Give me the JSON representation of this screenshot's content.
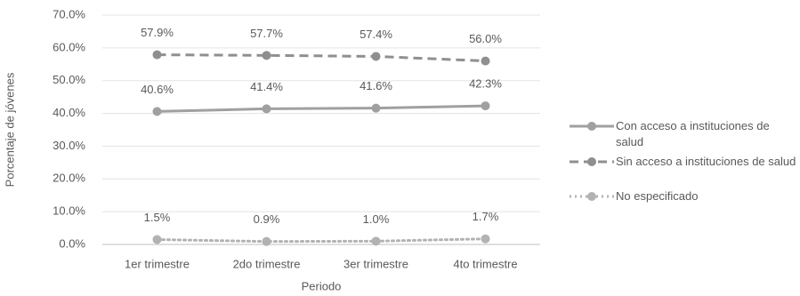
{
  "chart_data": {
    "type": "line",
    "y_label": "Porcentaje de jóvenes",
    "x_label": "Periodo",
    "categories": [
      "1er trimestre",
      "2do trimestre",
      "3er trimestre",
      "4to trimestre"
    ],
    "series": [
      {
        "name": "Con acceso a instituciones de salud",
        "color": "#a0a0a0",
        "line_style": "solid",
        "values": [
          40.6,
          41.4,
          41.6,
          42.3
        ],
        "value_labels": [
          "40.6%",
          "41.4%",
          "41.6%",
          "42.3%"
        ]
      },
      {
        "name": "Sin acceso a instituciones de salud",
        "color": "#8f8f8f",
        "line_style": "dashed",
        "values": [
          57.9,
          57.7,
          57.4,
          56.0
        ],
        "value_labels": [
          "57.9%",
          "57.7%",
          "57.4%",
          "56.0%"
        ]
      },
      {
        "name": "No especificado",
        "color": "#b2b2b2",
        "line_style": "dotted",
        "values": [
          1.5,
          0.9,
          1.0,
          1.7
        ],
        "value_labels": [
          "1.5%",
          "0.9%",
          "1.0%",
          "1.7%"
        ]
      }
    ],
    "ylim": [
      0,
      70
    ],
    "yticks": [
      {
        "value": 0,
        "label": "0.0%"
      },
      {
        "value": 10,
        "label": "10.0%"
      },
      {
        "value": 20,
        "label": "20.0%"
      },
      {
        "value": 30,
        "label": "30.0%"
      },
      {
        "value": 40,
        "label": "40.0%"
      },
      {
        "value": 50,
        "label": "50.0%"
      },
      {
        "value": 60,
        "label": "60.0%"
      },
      {
        "value": 70,
        "label": "70.0%"
      }
    ],
    "grid": true
  }
}
